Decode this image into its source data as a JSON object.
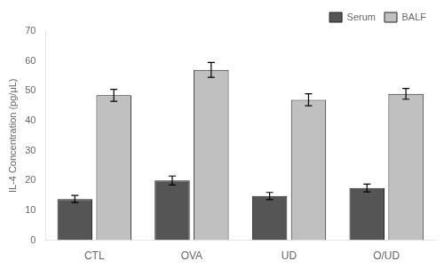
{
  "chart_data": {
    "type": "bar",
    "categories": [
      "CTL",
      "OVA",
      "UD",
      "O/UD"
    ],
    "series": [
      {
        "name": "Serum",
        "color": "#555555",
        "values": [
          13.8,
          20.0,
          14.8,
          17.5
        ],
        "errors": [
          1.2,
          1.5,
          1.2,
          1.3
        ]
      },
      {
        "name": "BALF",
        "color": "#c0c0c0",
        "values": [
          48.5,
          57.0,
          47.0,
          49.0
        ],
        "errors": [
          2.0,
          2.5,
          2.0,
          1.8
        ]
      }
    ],
    "ylabel": "IL-4 Concentration (pg/μL)",
    "ylim": [
      0,
      70
    ],
    "yticks": [
      0,
      10,
      20,
      30,
      40,
      50,
      60,
      70
    ],
    "grid": false,
    "legend": "upper right"
  }
}
